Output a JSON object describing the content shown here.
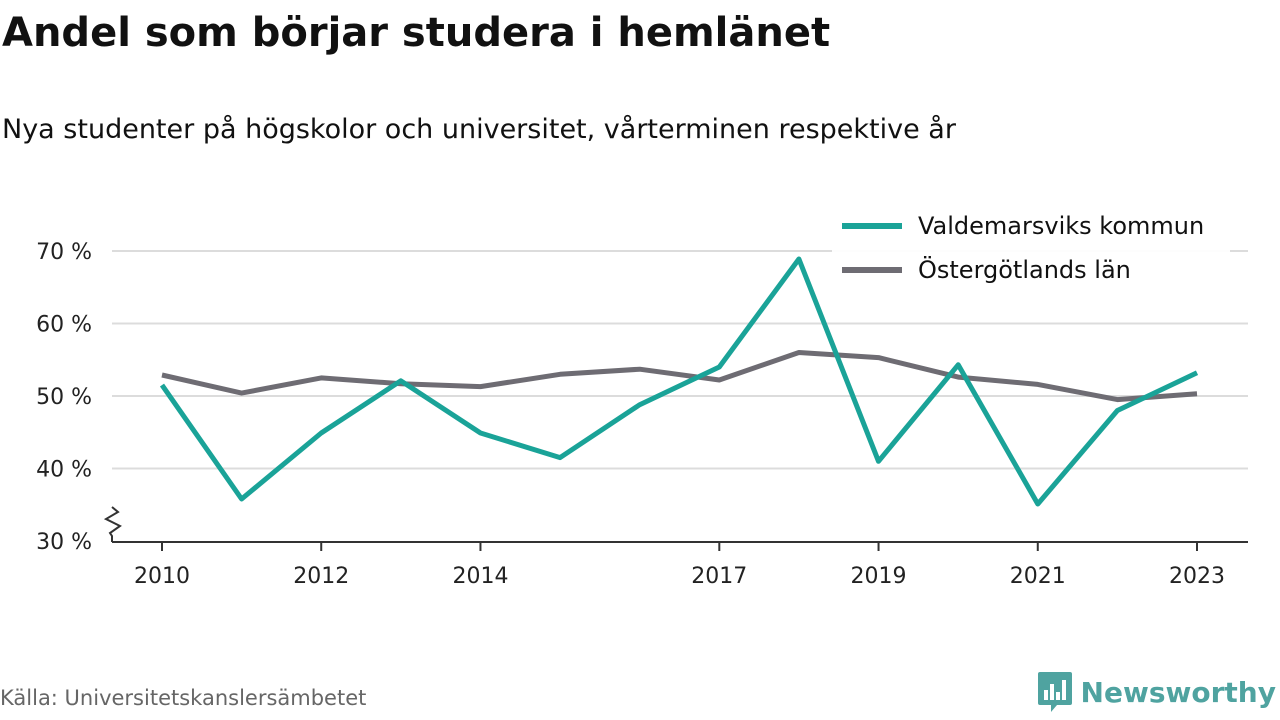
{
  "chart_data": {
    "type": "line",
    "title": "Andel som börjar studera i hemlänet",
    "subtitle": "Nya studenter på högskolor och universitet, vårterminen respektive år",
    "x": [
      2010,
      2011,
      2012,
      2013,
      2014,
      2015,
      2016,
      2017,
      2018,
      2019,
      2020,
      2021,
      2022,
      2023
    ],
    "x_tick_values": [
      2010,
      2012,
      2014,
      2017,
      2019,
      2021,
      2023
    ],
    "x_tick_labels": [
      "2010",
      "2012",
      "2014",
      "2017",
      "2019",
      "2021",
      "2023"
    ],
    "y_tick_values": [
      30,
      40,
      50,
      60,
      70
    ],
    "y_tick_labels": [
      "30 %",
      "40 %",
      "50 %",
      "60 %",
      "70 %"
    ],
    "ylim": [
      30,
      72
    ],
    "y_axis_break": true,
    "grid": true,
    "legend_position": "top-right",
    "series": [
      {
        "name": "Valdemarsviks kommun",
        "color": "#1aa398",
        "values": [
          51.5,
          35.8,
          44.9,
          52.1,
          44.9,
          41.5,
          48.8,
          54.0,
          68.9,
          41.0,
          54.3,
          35.1,
          48.0,
          53.2
        ]
      },
      {
        "name": "Östergötlands län",
        "color": "#6e6c73",
        "values": [
          52.9,
          50.4,
          52.5,
          51.7,
          51.3,
          53.0,
          53.7,
          52.2,
          56.0,
          55.3,
          52.6,
          51.6,
          49.5,
          50.3
        ]
      }
    ]
  },
  "source": "Källa: Universitetskanslersämbetet",
  "brand": {
    "name": "Newsworthy",
    "icon": "newsworthy-logo-icon",
    "color": "#4fa3a0"
  }
}
